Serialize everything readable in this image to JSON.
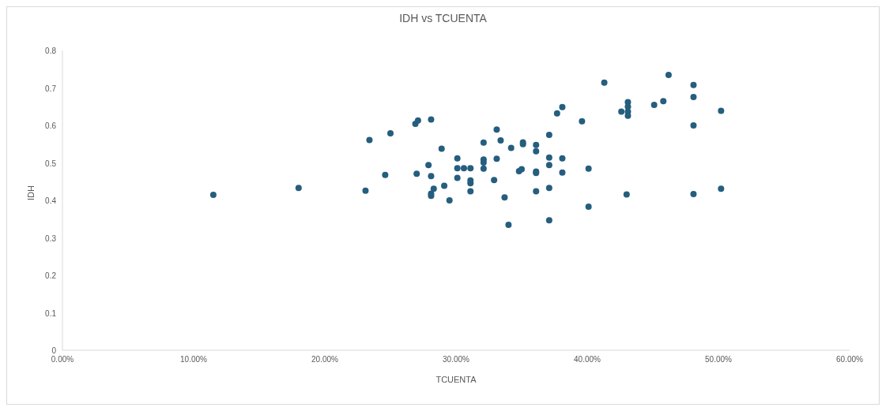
{
  "chart_data": {
    "type": "scatter",
    "title": "IDH vs TCUENTA",
    "xlabel": "TCUENTA",
    "ylabel": "IDH",
    "x": [
      11.5,
      18.0,
      23.1,
      23.4,
      25.0,
      24.6,
      26.9,
      27.1,
      28.1,
      37.7,
      38.1,
      39.6,
      33.1,
      37.1,
      32.1,
      33.4,
      34.2,
      35.1,
      35.1,
      36.1,
      36.1,
      28.9,
      30.1,
      32.1,
      32.1,
      33.1,
      37.1,
      37.1,
      38.1,
      27.9,
      30.1,
      30.6,
      31.1,
      32.1,
      27.0,
      28.1,
      30.1,
      31.1,
      31.1,
      32.9,
      34.8,
      35.0,
      36.1,
      36.1,
      38.1,
      40.1,
      29.1,
      28.3,
      28.1,
      28.1,
      31.1,
      29.5,
      33.7,
      36.1,
      37.1,
      40.1,
      34.0,
      37.1,
      41.3,
      46.2,
      48.1,
      48.1,
      50.2,
      48.1,
      43.1,
      43.1,
      42.6,
      43.1,
      43.1,
      45.1,
      45.8,
      43.0,
      48.1,
      50.2
    ],
    "values": [
      0.415,
      0.433,
      0.426,
      0.561,
      0.579,
      0.468,
      0.604,
      0.613,
      0.616,
      0.632,
      0.649,
      0.611,
      0.589,
      0.575,
      0.554,
      0.56,
      0.54,
      0.555,
      0.55,
      0.548,
      0.531,
      0.538,
      0.512,
      0.509,
      0.501,
      0.511,
      0.514,
      0.494,
      0.512,
      0.494,
      0.486,
      0.486,
      0.486,
      0.485,
      0.471,
      0.465,
      0.46,
      0.453,
      0.446,
      0.454,
      0.478,
      0.483,
      0.477,
      0.473,
      0.474,
      0.485,
      0.439,
      0.431,
      0.418,
      0.412,
      0.424,
      0.4,
      0.408,
      0.424,
      0.433,
      0.383,
      0.335,
      0.347,
      0.714,
      0.735,
      0.708,
      0.676,
      0.639,
      0.6,
      0.662,
      0.65,
      0.637,
      0.637,
      0.626,
      0.655,
      0.665,
      0.416,
      0.417,
      0.431
    ],
    "color": "#255e7e",
    "marker": "circle",
    "grid": false,
    "legend": false,
    "xlim": [
      0,
      60
    ],
    "xticks": [
      {
        "value": 0,
        "label": "0.00%"
      },
      {
        "value": 10,
        "label": "10.00%"
      },
      {
        "value": 20,
        "label": "20.00%"
      },
      {
        "value": 30,
        "label": "30.00%"
      },
      {
        "value": 40,
        "label": "40.00%"
      },
      {
        "value": 50,
        "label": "50.00%"
      },
      {
        "value": 60,
        "label": "60.00%"
      }
    ],
    "ylim": [
      0,
      0.8
    ],
    "yticks": [
      0,
      0.1,
      0.2,
      0.3,
      0.4,
      0.5,
      0.6,
      0.7,
      0.8
    ]
  }
}
